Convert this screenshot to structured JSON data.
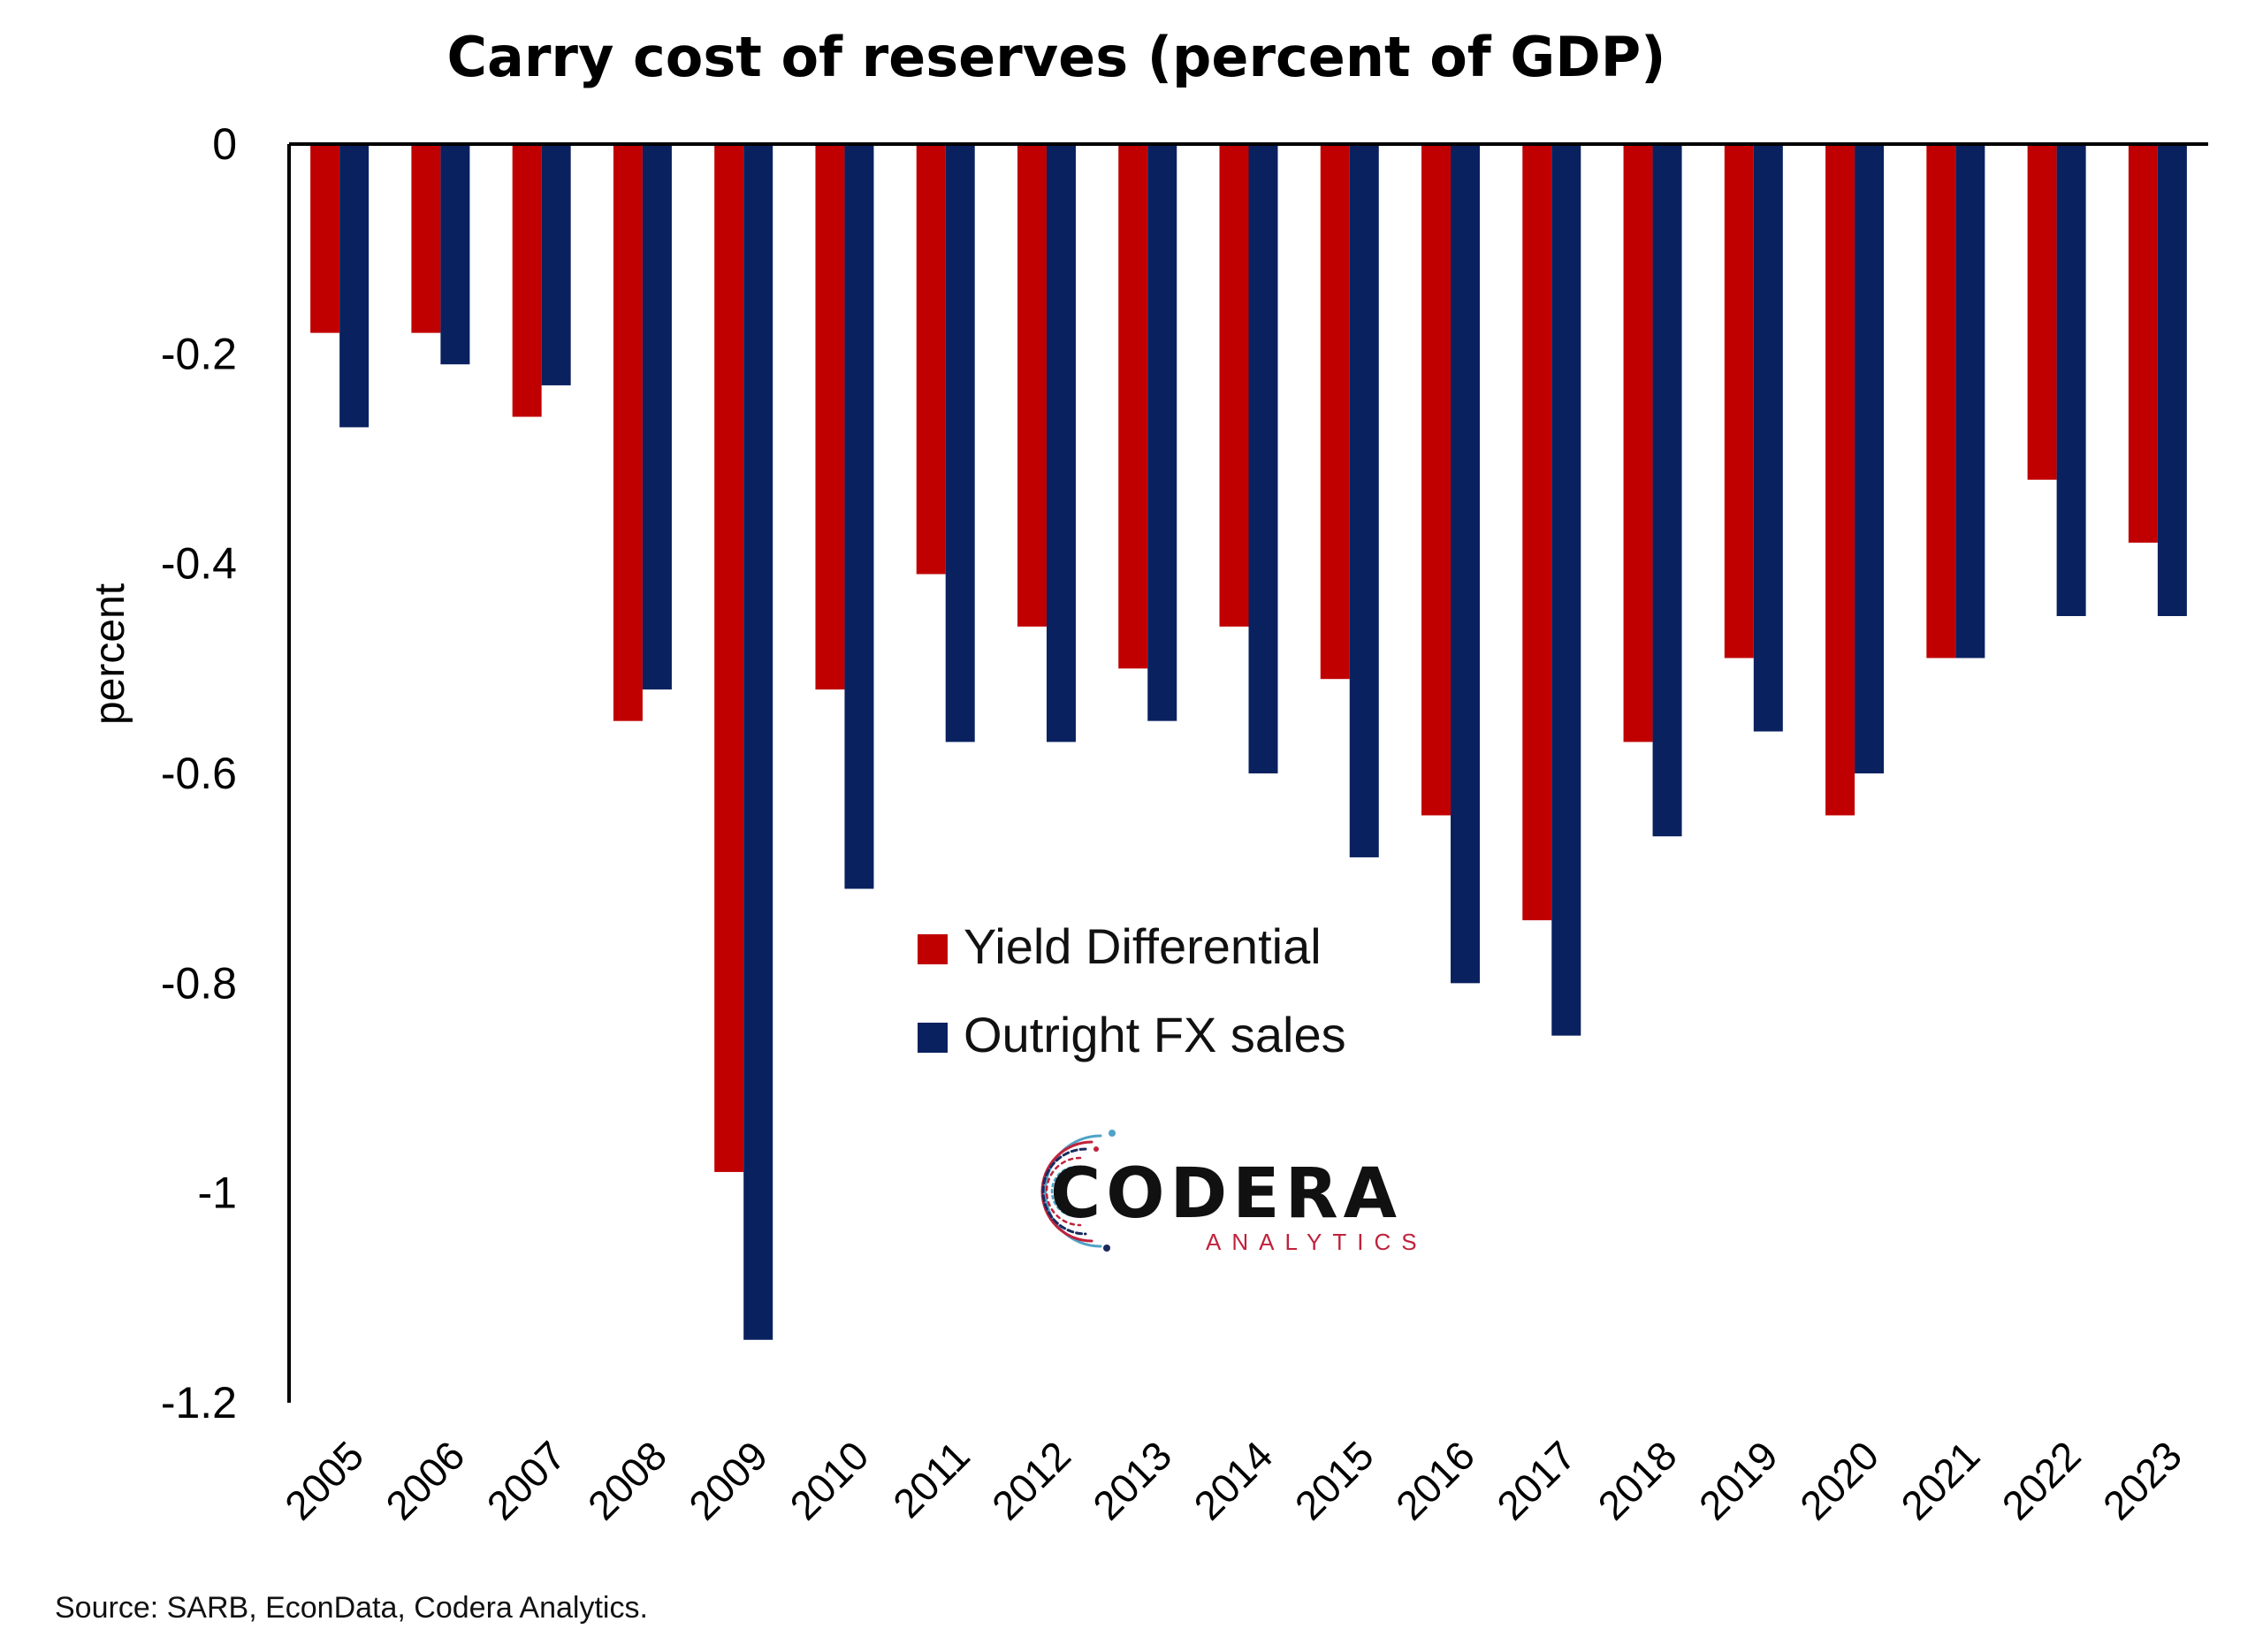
{
  "chart_data": {
    "type": "bar",
    "title": "Carry cost of reserves (percent of GDP)",
    "xlabel": "",
    "ylabel": "percent",
    "ylim": [
      -1.2,
      0
    ],
    "yticks": [
      "0",
      "-0.2",
      "-0.4",
      "-0.6",
      "-0.8",
      "-1",
      "-1.2"
    ],
    "ytick_values": [
      0,
      -0.2,
      -0.4,
      -0.6,
      -0.8,
      -1.0,
      -1.2
    ],
    "grid": false,
    "legend_position": "center",
    "categories": [
      "2005",
      "2006",
      "2007",
      "2008",
      "2009",
      "2010",
      "2011",
      "2012",
      "2013",
      "2014",
      "2015",
      "2016",
      "2017",
      "2018",
      "2019",
      "2020",
      "2021",
      "2022",
      "2023"
    ],
    "series": [
      {
        "name": "Yield Differential",
        "color": "#C00000",
        "values": [
          -0.18,
          -0.18,
          -0.26,
          -0.55,
          -0.98,
          -0.52,
          -0.41,
          -0.46,
          -0.5,
          -0.46,
          -0.51,
          -0.64,
          -0.74,
          -0.57,
          -0.49,
          -0.64,
          -0.49,
          -0.32,
          -0.38
        ]
      },
      {
        "name": "Outright FX sales",
        "color": "#0A2160",
        "values": [
          -0.27,
          -0.21,
          -0.23,
          -0.52,
          -1.14,
          -0.71,
          -0.57,
          -0.57,
          -0.55,
          -0.6,
          -0.68,
          -0.8,
          -0.85,
          -0.66,
          -0.56,
          -0.6,
          -0.49,
          -0.45,
          -0.45
        ]
      }
    ],
    "source": "Source: SARB, EconData, Codera Analytics."
  },
  "logo": {
    "wordmark": "CODERA",
    "tagline": "ANALYTICS",
    "colors": [
      "#C0223B",
      "#4FA3C7",
      "#1A2A5E"
    ]
  }
}
